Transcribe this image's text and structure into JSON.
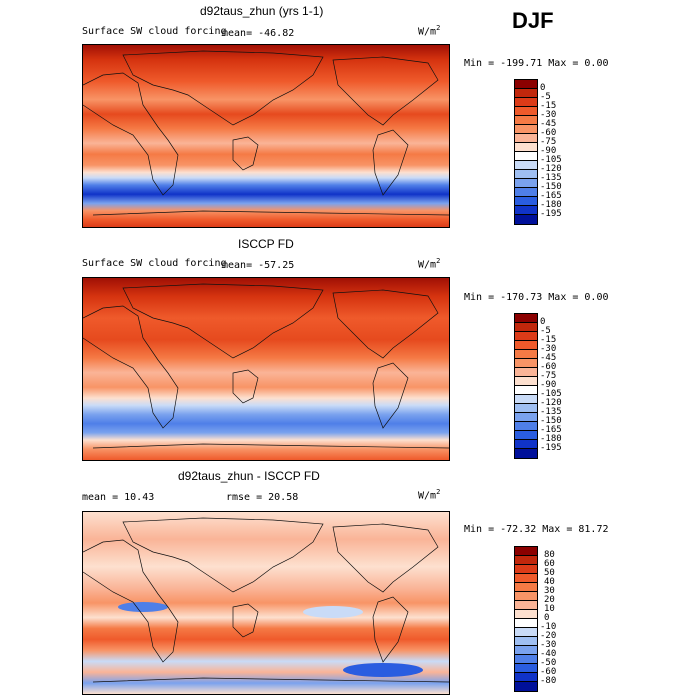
{
  "season": "DJF",
  "panels": [
    {
      "title": "d92taus_zhun (yrs 1-1)",
      "subtitle": "Surface SW cloud forcing",
      "mean_text": "mean=  -46.82",
      "units_base": "W/m",
      "units_exp": "2",
      "minmax": "Min = -199.71 Max =    0.00",
      "colorbar_levels": [
        "0",
        "-5",
        "-15",
        "-30",
        "-45",
        "-60",
        "-75",
        "-90",
        "-105",
        "-120",
        "-135",
        "-150",
        "-165",
        "-180",
        "-195"
      ],
      "colorbar_colors": [
        "#8b0000",
        "#c1270c",
        "#dc3b18",
        "#ef5a2b",
        "#f57a45",
        "#f89466",
        "#fab497",
        "#fde0cf",
        "#ffffff",
        "#c9dbf7",
        "#9fbff2",
        "#7aa2ee",
        "#4f7fe8",
        "#2a5de0",
        "#1033c8",
        "#00109a"
      ]
    },
    {
      "title": "ISCCP FD",
      "subtitle": "Surface SW cloud forcing",
      "mean_text": "mean=  -57.25",
      "units_base": "W/m",
      "units_exp": "2",
      "minmax": "Min = -170.73 Max =    0.00",
      "colorbar_levels": [
        "0",
        "-5",
        "-15",
        "-30",
        "-45",
        "-60",
        "-75",
        "-90",
        "-105",
        "-120",
        "-135",
        "-150",
        "-165",
        "-180",
        "-195"
      ],
      "colorbar_colors": [
        "#8b0000",
        "#c1270c",
        "#dc3b18",
        "#ef5a2b",
        "#f57a45",
        "#f89466",
        "#fab497",
        "#fde0cf",
        "#ffffff",
        "#c9dbf7",
        "#9fbff2",
        "#7aa2ee",
        "#4f7fe8",
        "#2a5de0",
        "#1033c8",
        "#00109a"
      ]
    },
    {
      "title": "d92taus_zhun - ISCCP FD",
      "mean_text": "mean =   10.43",
      "rmse_text": "rmse =   20.58",
      "units_base": "W/m",
      "units_exp": "2",
      "minmax": "Min = -72.32 Max =  81.72",
      "colorbar_levels": [
        "80",
        "60",
        "50",
        "40",
        "30",
        "20",
        "10",
        "0",
        "-10",
        "-20",
        "-30",
        "-40",
        "-50",
        "-60",
        "-80"
      ],
      "colorbar_colors": [
        "#8b0000",
        "#c1270c",
        "#dc3b18",
        "#ef5a2b",
        "#f57a45",
        "#f89466",
        "#fab497",
        "#fde0cf",
        "#ffffff",
        "#c9dbf7",
        "#9fbff2",
        "#7aa2ee",
        "#4f7fe8",
        "#2a5de0",
        "#1033c8",
        "#00109a"
      ]
    }
  ],
  "chart_data": [
    {
      "type": "heatmap",
      "title": "d92taus_zhun (yrs 1-1)",
      "subtitle": "Surface SW cloud forcing",
      "units": "W/m2",
      "mean": -46.82,
      "min": -199.71,
      "max": 0.0,
      "levels": [
        0,
        -5,
        -15,
        -30,
        -45,
        -60,
        -75,
        -90,
        -105,
        -120,
        -135,
        -150,
        -165,
        -180,
        -195
      ]
    },
    {
      "type": "heatmap",
      "title": "ISCCP FD",
      "subtitle": "Surface SW cloud forcing",
      "units": "W/m2",
      "mean": -57.25,
      "min": -170.73,
      "max": 0.0,
      "levels": [
        0,
        -5,
        -15,
        -30,
        -45,
        -60,
        -75,
        -90,
        -105,
        -120,
        -135,
        -150,
        -165,
        -180,
        -195
      ]
    },
    {
      "type": "heatmap",
      "title": "d92taus_zhun - ISCCP FD",
      "units": "W/m2",
      "mean": 10.43,
      "rmse": 20.58,
      "min": -72.32,
      "max": 81.72,
      "levels": [
        80,
        60,
        50,
        40,
        30,
        20,
        10,
        0,
        -10,
        -20,
        -30,
        -40,
        -50,
        -60,
        -80
      ]
    }
  ]
}
